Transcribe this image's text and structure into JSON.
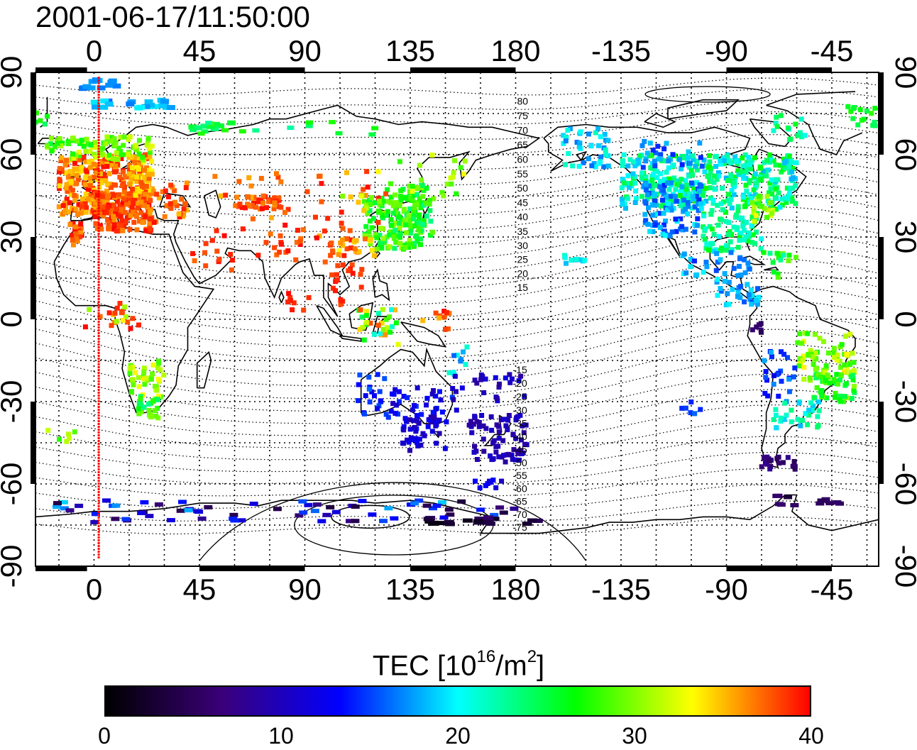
{
  "title": "2001-06-17/11:50:00",
  "map": {
    "top_lon_labels": [
      "0",
      "45",
      "90",
      "135",
      "180",
      "-135",
      "-90",
      "-45"
    ],
    "bottom_lon_labels": [
      "0",
      "45",
      "90",
      "135",
      "180",
      "-135",
      "-90",
      "-45"
    ],
    "left_lat_labels": [
      "90",
      "60",
      "30",
      "0",
      "-30",
      "-60",
      "-90"
    ],
    "right_lat_labels": [
      "90",
      "60",
      "30",
      "0",
      "-30",
      "-60",
      "-90"
    ],
    "contour_labels_north": [
      "80",
      "75",
      "70",
      "65",
      "60",
      "55",
      "50",
      "45",
      "40",
      "35",
      "30",
      "25",
      "20",
      "15"
    ],
    "contour_labels_south": [
      "-15",
      "-20",
      "-25",
      "-30",
      "-35",
      "-40",
      "-45",
      "-50",
      "-55",
      "-60",
      "-65",
      "-70",
      "-75"
    ],
    "terminator_color": "#ff0000",
    "terminator_lon": 2
  },
  "colorbar": {
    "title_text": "TEC  [10",
    "title_exp": "16",
    "title_unit": "/m",
    "title_unit_exp": "2",
    "title_close": "]",
    "min": 0,
    "max": 40,
    "ticks": [
      "0",
      "10",
      "20",
      "30",
      "40"
    ],
    "colors": [
      "#000000",
      "#3a007a",
      "#0000ff",
      "#00ffff",
      "#00ff00",
      "#ffff00",
      "#ff0000"
    ]
  }
}
